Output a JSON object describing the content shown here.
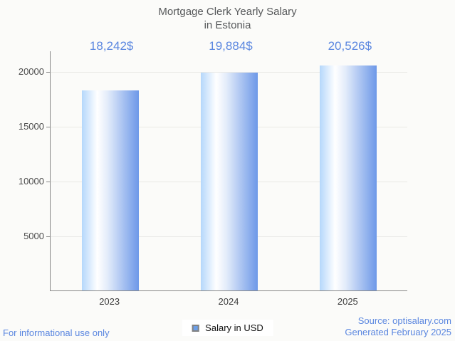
{
  "title": {
    "line1": "Mortgage Clerk Yearly Salary",
    "line2": "in Estonia"
  },
  "chart_data": {
    "type": "bar",
    "title": "Mortgage Clerk Yearly Salary in Estonia",
    "categories": [
      "2023",
      "2024",
      "2025"
    ],
    "values": [
      18242,
      19884,
      20526
    ],
    "value_labels": [
      "18,242$",
      "19,884$",
      "20,526$"
    ],
    "series_name": "Salary in USD",
    "xlabel": "",
    "ylabel": "",
    "ylim": [
      0,
      21880
    ],
    "yticks": [
      5000,
      10000,
      15000,
      20000
    ],
    "grid": true,
    "legend_position": "bottom-center"
  },
  "legend": {
    "label": "Salary in USD"
  },
  "footer": {
    "left": "For informational use only",
    "source": "Source: optisalary.com",
    "generated": "Generated February 2025"
  },
  "colors": {
    "background": "#fbfbf9",
    "title_text": "#56585a",
    "annotation_blue": "#5b87e0",
    "bar_edge_light": "#b5d7fb",
    "bar_edge_dark": "#6d98e8",
    "axis_line": "#878787",
    "gridline": "#e9e9e6",
    "tick_text": "#4c4c4c",
    "legend_swatch": "#6c9fe8"
  }
}
